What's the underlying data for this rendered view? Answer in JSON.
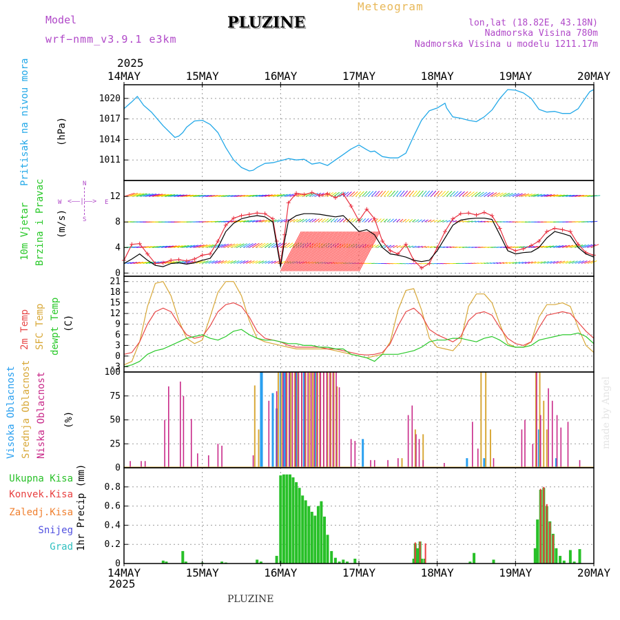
{
  "header": {
    "model_label": "Model",
    "model_name": "wrf−nmm_v3.9.1  e3km",
    "station": "PLUZINE",
    "chart_title": "Meteogram",
    "lonlat": "lon,lat (18.82E, 43.18N)",
    "elevation": "Nadmorska Visina 780m",
    "model_elevation": "Nadmorska Visina u modelu 1211.17m",
    "footer_station": "PLUZINE",
    "watermark": "made by Angel"
  },
  "colors": {
    "pressure": "#22a8e8",
    "wind_speed": "#000000",
    "gust": "#e83040",
    "temp2m": "#e84848",
    "sfc_temp": "#d8a838",
    "dewpoint": "#28c828",
    "cloud_high": "#2aa0f0",
    "cloud_mid": "#d8a838",
    "cloud_low": "#c82888",
    "precip_total": "#28c028",
    "precip_conv": "#e84040",
    "precip_frz": "#f08030",
    "snow": "#5050e0",
    "graupel": "#30c0c0",
    "title_magenta": "#b048c8",
    "title_gold": "#e8b858"
  },
  "chart_data": [
    {
      "type": "line",
      "panel": "pressure",
      "ylabel": "(hPa)",
      "side_label": "Pritisak na nivou mora",
      "year": "2025",
      "x_ticks": [
        "14MAY",
        "15MAY",
        "16MAY",
        "17MAY",
        "18MAY",
        "19MAY",
        "20MAY"
      ],
      "x_range_days": [
        0,
        6
      ],
      "ylim": [
        1008.0,
        1022.0
      ],
      "y_ticks": [
        1011,
        1014,
        1017,
        1020
      ],
      "x": [
        0.0,
        0.1,
        0.17,
        0.25,
        0.35,
        0.5,
        0.65,
        0.7,
        0.75,
        0.8,
        0.9,
        1.0,
        1.1,
        1.2,
        1.3,
        1.4,
        1.5,
        1.6,
        1.65,
        1.7,
        1.8,
        1.9,
        2.0,
        2.1,
        2.2,
        2.3,
        2.4,
        2.5,
        2.6,
        2.7,
        2.8,
        2.9,
        3.0,
        3.1,
        3.15,
        3.2,
        3.3,
        3.4,
        3.5,
        3.6,
        3.7,
        3.8,
        3.9,
        4.0,
        4.1,
        4.12,
        4.2,
        4.3,
        4.4,
        4.5,
        4.6,
        4.7,
        4.8,
        4.9,
        5.0,
        5.1,
        5.2,
        5.3,
        5.4,
        5.5,
        5.6,
        5.7,
        5.8,
        5.9,
        5.95,
        6.0
      ],
      "values": [
        1018.5,
        1019.5,
        1020.3,
        1019.0,
        1018.0,
        1016.0,
        1014.3,
        1014.5,
        1015.0,
        1015.8,
        1016.7,
        1016.8,
        1016.2,
        1015.0,
        1012.8,
        1011.0,
        1009.9,
        1009.4,
        1009.5,
        1009.9,
        1010.5,
        1010.6,
        1010.9,
        1011.2,
        1011.0,
        1011.1,
        1010.4,
        1010.6,
        1010.2,
        1011.0,
        1011.8,
        1012.6,
        1013.2,
        1012.5,
        1012.2,
        1012.3,
        1011.5,
        1011.3,
        1011.3,
        1012.0,
        1014.5,
        1016.8,
        1018.2,
        1018.6,
        1019.3,
        1018.6,
        1017.3,
        1017.1,
        1016.8,
        1016.6,
        1017.3,
        1018.3,
        1020.0,
        1021.3,
        1021.2,
        1020.8,
        1020.0,
        1018.4,
        1018.0,
        1018.1,
        1017.8,
        1017.8,
        1018.5,
        1020.2,
        1021.0,
        1021.3
      ]
    },
    {
      "type": "line",
      "panel": "wind",
      "ylabel": "(m/s)",
      "side_label_1": "10m Vjetar",
      "side_label_2": "Brzina i Pravac",
      "compass": {
        "n": "N",
        "s": "S",
        "e": "E",
        "w": "W"
      },
      "ylim": [
        -0.5,
        14.5
      ],
      "y_ticks": [
        0,
        4,
        8,
        12
      ],
      "x": [
        0.0,
        0.1,
        0.2,
        0.3,
        0.4,
        0.5,
        0.6,
        0.7,
        0.8,
        0.9,
        1.0,
        1.1,
        1.2,
        1.3,
        1.4,
        1.5,
        1.6,
        1.7,
        1.8,
        1.9,
        1.95,
        2.0,
        2.05,
        2.1,
        2.2,
        2.3,
        2.4,
        2.5,
        2.6,
        2.7,
        2.8,
        2.9,
        3.0,
        3.1,
        3.2,
        3.3,
        3.4,
        3.5,
        3.6,
        3.7,
        3.8,
        3.9,
        4.0,
        4.1,
        4.2,
        4.3,
        4.4,
        4.5,
        4.6,
        4.7,
        4.8,
        4.9,
        5.0,
        5.1,
        5.2,
        5.3,
        5.4,
        5.5,
        5.6,
        5.7,
        5.8,
        5.9,
        6.0
      ],
      "series": [
        {
          "name": "speed",
          "values": [
            1.5,
            2.2,
            3.0,
            2.0,
            1.2,
            1.0,
            1.5,
            1.6,
            1.4,
            1.6,
            2.0,
            2.3,
            4.0,
            6.5,
            7.8,
            8.5,
            8.8,
            9.0,
            8.8,
            8.0,
            4.5,
            1.0,
            5.0,
            8.2,
            9.0,
            9.3,
            9.3,
            9.2,
            9.0,
            8.8,
            9.0,
            7.8,
            6.5,
            6.8,
            6.0,
            4.0,
            3.0,
            2.8,
            2.5,
            2.0,
            1.8,
            2.0,
            3.5,
            5.5,
            7.5,
            8.3,
            8.5,
            8.6,
            8.6,
            8.4,
            6.0,
            3.5,
            3.0,
            3.2,
            3.3,
            4.0,
            5.5,
            6.5,
            6.2,
            5.8,
            4.0,
            3.0,
            2.5
          ]
        },
        {
          "name": "gust",
          "values": [
            2.0,
            4.5,
            4.6,
            3.0,
            1.5,
            1.6,
            2.0,
            2.1,
            1.9,
            2.2,
            2.8,
            3.0,
            5.0,
            7.5,
            8.6,
            9.0,
            9.2,
            9.4,
            9.3,
            8.5,
            5.0,
            1.5,
            6.0,
            11.0,
            12.5,
            12.3,
            12.6,
            12.2,
            12.4,
            11.8,
            12.4,
            10.5,
            8.2,
            10.0,
            8.5,
            5.0,
            3.5,
            3.0,
            4.5,
            2.0,
            0.8,
            1.5,
            4.0,
            6.5,
            8.5,
            9.3,
            9.4,
            9.1,
            9.5,
            9.0,
            7.0,
            4.0,
            3.5,
            3.8,
            4.3,
            5.0,
            6.5,
            7.0,
            6.8,
            6.5,
            4.5,
            3.2,
            2.8
          ]
        }
      ]
    },
    {
      "type": "line",
      "panel": "temperature",
      "ylabel": "(C)",
      "side_label_1": "2m Temp",
      "side_label_2": "SFC Temp",
      "side_label_3": "dewpt Temp",
      "ylim": [
        -4.5,
        22.5
      ],
      "y_ticks": [
        -3,
        0,
        3,
        6,
        9,
        12,
        15,
        18,
        21
      ],
      "x": [
        0.0,
        0.1,
        0.2,
        0.3,
        0.4,
        0.5,
        0.6,
        0.7,
        0.8,
        0.9,
        1.0,
        1.1,
        1.2,
        1.3,
        1.4,
        1.5,
        1.6,
        1.7,
        1.8,
        1.9,
        2.0,
        2.1,
        2.2,
        2.3,
        2.4,
        2.5,
        2.6,
        2.7,
        2.8,
        2.9,
        3.0,
        3.1,
        3.2,
        3.3,
        3.4,
        3.5,
        3.6,
        3.7,
        3.8,
        3.9,
        4.0,
        4.1,
        4.2,
        4.3,
        4.4,
        4.5,
        4.6,
        4.7,
        4.8,
        4.9,
        5.0,
        5.1,
        5.2,
        5.3,
        5.4,
        5.5,
        5.6,
        5.7,
        5.8,
        5.9,
        6.0
      ],
      "series": [
        {
          "name": "2m Temp",
          "values": [
            0.5,
            1.0,
            4.0,
            9.0,
            12.5,
            13.5,
            12.5,
            9.0,
            6.0,
            5.0,
            5.5,
            8.5,
            12.5,
            14.5,
            15.0,
            14.0,
            11.0,
            7.0,
            5.0,
            4.5,
            4.0,
            3.0,
            2.5,
            2.5,
            2.5,
            2.5,
            2.0,
            2.0,
            1.5,
            1.0,
            0.5,
            0.3,
            0.5,
            1.0,
            3.5,
            8.5,
            12.5,
            13.5,
            11.5,
            7.5,
            6.0,
            5.0,
            4.0,
            5.5,
            10.0,
            12.0,
            12.5,
            11.5,
            8.0,
            5.0,
            3.5,
            3.0,
            4.0,
            8.0,
            11.5,
            12.0,
            12.5,
            12.0,
            9.5,
            7.0,
            5.0
          ]
        },
        {
          "name": "SFC Temp",
          "values": [
            -2.5,
            -1.5,
            4.0,
            14.0,
            20.5,
            21.0,
            17.0,
            10.0,
            5.0,
            3.5,
            4.5,
            11.0,
            18.0,
            21.0,
            21.0,
            17.0,
            10.0,
            5.0,
            4.0,
            3.5,
            3.0,
            2.5,
            2.0,
            2.0,
            2.0,
            2.0,
            2.0,
            1.5,
            1.0,
            0.5,
            0.0,
            -0.5,
            0.0,
            0.5,
            4.0,
            13.0,
            18.5,
            19.0,
            13.0,
            5.0,
            2.5,
            2.0,
            1.5,
            4.0,
            14.0,
            17.5,
            17.5,
            15.0,
            9.0,
            3.5,
            2.5,
            2.5,
            4.0,
            11.0,
            14.5,
            14.5,
            15.0,
            14.0,
            8.0,
            3.0,
            1.0
          ]
        },
        {
          "name": "dewpt Temp",
          "values": [
            -3.0,
            -2.5,
            -1.5,
            0.5,
            1.5,
            2.0,
            3.0,
            4.0,
            5.0,
            5.5,
            6.0,
            5.0,
            4.5,
            5.5,
            7.0,
            7.5,
            6.0,
            5.0,
            4.5,
            4.5,
            4.0,
            3.5,
            3.5,
            3.0,
            3.0,
            2.5,
            2.5,
            2.0,
            2.0,
            0.5,
            0.0,
            -0.5,
            -1.5,
            0.5,
            0.5,
            0.5,
            1.0,
            1.5,
            2.5,
            4.0,
            4.5,
            4.5,
            5.0,
            5.0,
            4.5,
            4.0,
            5.0,
            5.5,
            4.5,
            3.0,
            2.5,
            2.5,
            3.0,
            4.5,
            5.0,
            5.5,
            6.0,
            6.0,
            6.5,
            5.5,
            3.5
          ]
        }
      ]
    },
    {
      "type": "bar",
      "panel": "clouds",
      "ylabel": "(%)",
      "side_label_1": "Visoka Oblacnost",
      "side_label_2": "Srednja Oblacnost",
      "side_label_3": "Niska Oblacnost",
      "ylim": [
        0,
        100
      ],
      "y_ticks": [
        0,
        25,
        50,
        75,
        100
      ],
      "series": [
        {
          "name": "Visoka Oblacnost",
          "x": [
            1.75,
            1.76,
            1.9,
            1.95,
            2.0,
            2.05,
            2.12,
            2.2,
            2.3,
            2.45,
            3.05,
            4.38,
            4.6,
            5.3,
            5.52
          ],
          "values": [
            100,
            100,
            78,
            62,
            100,
            100,
            100,
            100,
            100,
            100,
            30,
            10,
            10,
            40,
            10
          ]
        },
        {
          "name": "Srednja Oblacnost",
          "x": [
            1.67,
            1.72,
            1.97,
            2.01,
            2.08,
            2.13,
            2.18,
            2.22,
            2.27,
            2.32,
            2.37,
            2.41,
            2.46,
            2.5,
            2.55,
            2.6,
            2.64,
            2.68,
            2.72,
            3.55,
            3.72,
            3.82,
            4.56,
            4.62,
            4.68,
            5.26,
            5.31,
            5.36,
            5.4
          ],
          "values": [
            86,
            40,
            100,
            100,
            100,
            100,
            100,
            100,
            100,
            100,
            100,
            100,
            100,
            100,
            100,
            100,
            100,
            100,
            85,
            10,
            40,
            35,
            100,
            100,
            40,
            100,
            100,
            70,
            40
          ]
        },
        {
          "name": "Niska Oblacnost",
          "x": [
            0.08,
            0.22,
            0.27,
            0.52,
            0.57,
            0.72,
            0.76,
            0.86,
            0.94,
            1.08,
            1.2,
            1.25,
            1.65,
            1.85,
            1.95,
            2.03,
            2.07,
            2.11,
            2.15,
            2.19,
            2.23,
            2.27,
            2.31,
            2.35,
            2.39,
            2.43,
            2.47,
            2.51,
            2.55,
            2.59,
            2.63,
            2.67,
            2.71,
            2.75,
            2.9,
            2.95,
            3.15,
            3.2,
            3.37,
            3.5,
            3.63,
            3.68,
            3.73,
            3.77,
            3.82,
            4.09,
            4.45,
            4.52,
            4.72,
            5.08,
            5.12,
            5.22,
            5.27,
            5.32,
            5.42,
            5.47,
            5.53,
            5.58,
            5.67,
            5.82
          ],
          "values": [
            7,
            7,
            7,
            50,
            85,
            90,
            75,
            51,
            15,
            13,
            25,
            23,
            13,
            70,
            80,
            100,
            100,
            100,
            100,
            100,
            100,
            100,
            100,
            100,
            100,
            100,
            100,
            100,
            100,
            100,
            100,
            100,
            100,
            84,
            30,
            28,
            8,
            8,
            8,
            10,
            55,
            65,
            35,
            30,
            8,
            5,
            48,
            20,
            10,
            40,
            50,
            25,
            100,
            55,
            83,
            70,
            55,
            42,
            48,
            8
          ]
        }
      ]
    },
    {
      "type": "bar",
      "panel": "precipitation",
      "ylabel": "1hr Precip (mm)",
      "legend": [
        "Ukupna Kisa",
        "Konvek.Kisa",
        "Zaledj.Kisa",
        "Snijeg",
        "Grad"
      ],
      "ylim": [
        0,
        1.0
      ],
      "y_ticks": [
        0,
        0.2,
        0.4,
        0.6,
        0.8
      ],
      "series": [
        {
          "name": "Ukupna Kisa",
          "x": [
            0.5,
            0.54,
            0.75,
            0.79,
            1.0,
            1.25,
            1.3,
            1.7,
            1.75,
            1.95,
            2.0,
            2.04,
            2.08,
            2.12,
            2.16,
            2.2,
            2.24,
            2.28,
            2.32,
            2.36,
            2.4,
            2.44,
            2.48,
            2.52,
            2.56,
            2.6,
            2.65,
            2.7,
            2.75,
            2.8,
            2.85,
            2.95,
            3.7,
            3.72,
            3.75,
            3.78,
            3.8,
            3.84,
            4.42,
            4.47,
            4.72,
            5.25,
            5.28,
            5.32,
            5.36,
            5.4,
            5.44,
            5.48,
            5.52,
            5.57,
            5.62,
            5.7,
            5.75,
            5.82
          ],
          "values": [
            0.03,
            0.02,
            0.13,
            0.02,
            0.01,
            0.02,
            0.01,
            0.04,
            0.02,
            0.08,
            0.92,
            0.93,
            0.93,
            0.93,
            0.9,
            0.85,
            0.79,
            0.71,
            0.66,
            0.6,
            0.54,
            0.5,
            0.6,
            0.65,
            0.49,
            0.3,
            0.13,
            0.06,
            0.02,
            0.04,
            0.02,
            0.05,
            0.05,
            0.21,
            0.16,
            0.23,
            0.05,
            0.05,
            0.02,
            0.11,
            0.04,
            0.16,
            0.46,
            0.77,
            0.79,
            0.6,
            0.44,
            0.31,
            0.16,
            0.08,
            0.03,
            0.14,
            0.02,
            0.15
          ]
        },
        {
          "name": "Konvek.Kisa",
          "x": [
            3.72,
            3.78,
            3.85,
            5.32,
            5.36,
            5.4,
            5.44,
            5.48
          ],
          "values": [
            0.22,
            0.23,
            0.21,
            0.78,
            0.8,
            0.62,
            0.43,
            0.3
          ]
        }
      ]
    }
  ]
}
